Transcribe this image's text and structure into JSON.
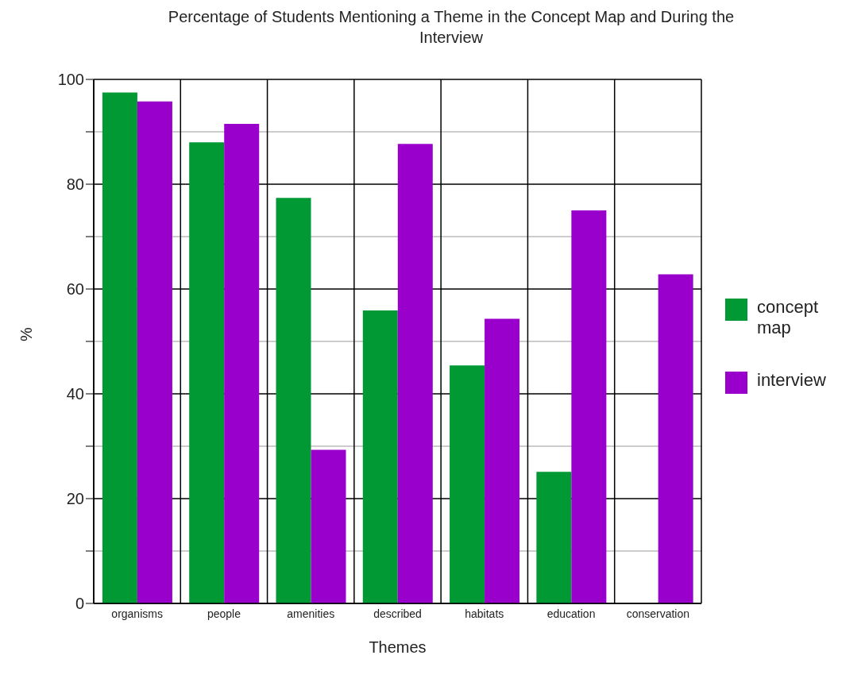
{
  "chart_data": {
    "type": "bar",
    "title": "Percentage of Students Mentioning a Theme in the Concept Map and During the Interview",
    "xlabel": "Themes",
    "ylabel": "%",
    "categories": [
      "organisms",
      "people",
      "amenities",
      "described",
      "habitats",
      "education",
      "conservation"
    ],
    "series": [
      {
        "name": "concept map",
        "color": "#009933",
        "values": [
          97.5,
          88,
          77.4,
          55.9,
          45.4,
          25.1,
          0
        ]
      },
      {
        "name": "interview",
        "color": "#9900cc",
        "values": [
          95.8,
          91.5,
          29.3,
          87.7,
          54.3,
          75,
          62.8
        ]
      }
    ],
    "ylim": [
      0,
      100
    ],
    "yticks": [
      0,
      {
        "value": 10,
        "label": null
      },
      20,
      {
        "value": 30,
        "label": null
      },
      40,
      {
        "value": 50,
        "label": null
      },
      60,
      {
        "value": 70,
        "label": null
      },
      80,
      {
        "value": 90,
        "label": null
      },
      100
    ],
    "grid": true,
    "legend": "right"
  }
}
